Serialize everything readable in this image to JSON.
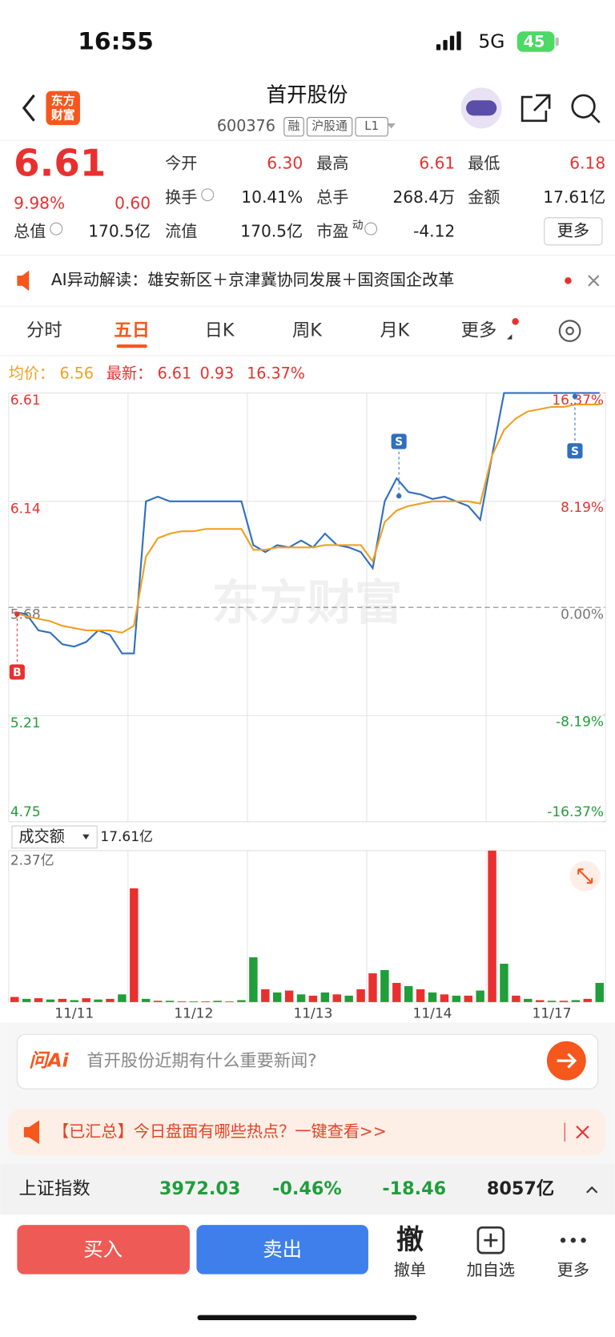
{
  "status_bar": {
    "time": "16:55",
    "network": "5G",
    "battery": "45"
  },
  "header": {
    "logo": [
      "东方",
      "财富"
    ],
    "title": "首开股份",
    "code": "600376",
    "tags": [
      "融",
      "沪股通",
      "L1"
    ]
  },
  "quote": {
    "price": "6.61",
    "change_pct": "9.98%",
    "change": "0.60",
    "color": "#e8312f",
    "more": "更多",
    "fields": [
      {
        "label": "今开",
        "value": "6.30",
        "color": "#e8312f"
      },
      {
        "label": "最高",
        "value": "6.61",
        "color": "#e8312f"
      },
      {
        "label": "最低",
        "value": "6.18",
        "color": "#e8312f"
      },
      {
        "label": "换手",
        "value": "10.41%",
        "color": "#222222",
        "info": true
      },
      {
        "label": "总手",
        "value": "268.4万",
        "color": "#222222"
      },
      {
        "label": "金额",
        "value": "17.61亿",
        "color": "#222222"
      },
      {
        "label": "总值",
        "value": "170.5亿",
        "color": "#222222",
        "info": true
      },
      {
        "label": "流值",
        "value": "170.5亿",
        "color": "#222222"
      },
      {
        "label": "市盈",
        "sup": "动",
        "value": "-4.12",
        "color": "#222222",
        "info": true
      }
    ]
  },
  "ai_banner": {
    "text": "AI异动解读：雄安新区＋京津冀协同发展＋国资国企改革"
  },
  "tabs": [
    "分时",
    "五日",
    "日K",
    "周K",
    "月K",
    "更多"
  ],
  "active_tab": 1,
  "chart_info": {
    "avg_label": "均价：",
    "avg": "6.56",
    "latest_label": "最新：",
    "latest": "6.61",
    "change": "0.93",
    "change_pct": "16.37%"
  },
  "watermark": "东方财富",
  "markers": [
    "B",
    "S",
    "S"
  ],
  "volume_header": {
    "selector": "成交额",
    "value": "17.61亿"
  },
  "chart_data": [
    {
      "type": "line",
      "ylim": [
        4.75,
        6.61
      ],
      "yticks": [
        6.61,
        6.14,
        5.68,
        5.21,
        4.75
      ],
      "y2lim": [
        -16.37,
        16.37
      ],
      "y2ticks": [
        {
          "value": 16.37,
          "label": "16.37%"
        },
        {
          "value": 8.19,
          "label": "8.19%"
        },
        {
          "value": 0,
          "label": "0.00%"
        },
        {
          "value": -8.19,
          "label": "-8.19%"
        },
        {
          "value": -16.37,
          "label": "-16.37%"
        }
      ],
      "grid": true,
      "up_color": "#e8312f",
      "down_color": "#1f9e3a",
      "flat_color": "#777777",
      "series": [
        {
          "color": "#2f6fbf",
          "values": [
            5.66,
            5.65,
            5.58,
            5.57,
            5.52,
            5.51,
            5.53,
            5.58,
            5.56,
            5.48,
            5.48,
            6.14,
            6.16,
            6.14,
            6.14,
            6.14,
            6.14,
            6.14,
            6.14,
            6.14,
            5.95,
            5.92,
            5.95,
            5.94,
            5.97,
            5.94,
            6.0,
            5.95,
            5.94,
            5.92,
            5.85,
            6.14,
            6.24,
            6.18,
            6.17,
            6.15,
            6.16,
            6.14,
            6.12,
            6.06,
            6.34,
            6.61,
            6.61,
            6.61,
            6.61,
            6.61,
            6.61,
            6.61,
            6.61,
            6.61
          ]
        },
        {
          "color": "#f0a020",
          "values": [
            5.66,
            5.64,
            5.63,
            5.62,
            5.6,
            5.59,
            5.58,
            5.58,
            5.58,
            5.57,
            5.6,
            5.9,
            5.98,
            6.0,
            6.01,
            6.01,
            6.02,
            6.02,
            6.02,
            6.02,
            5.93,
            5.93,
            5.94,
            5.94,
            5.94,
            5.94,
            5.95,
            5.95,
            5.95,
            5.95,
            5.88,
            6.05,
            6.1,
            6.12,
            6.13,
            6.14,
            6.14,
            6.14,
            6.14,
            6.13,
            6.34,
            6.45,
            6.5,
            6.53,
            6.54,
            6.55,
            6.55,
            6.56,
            6.56,
            6.56
          ]
        }
      ]
    },
    {
      "type": "bar",
      "ylim": [
        0,
        2.37
      ],
      "yticks": [
        {
          "value": 2.37,
          "label": "2.37亿"
        }
      ],
      "grid": true,
      "x": [
        null,
        null,
        null,
        null,
        null,
        "11/11",
        null,
        null,
        null,
        null,
        null,
        null,
        null,
        null,
        null,
        "11/12",
        null,
        null,
        null,
        null,
        null,
        null,
        null,
        null,
        null,
        "11/13",
        null,
        null,
        null,
        null,
        null,
        null,
        null,
        null,
        null,
        "11/14",
        null,
        null,
        null,
        null,
        null,
        null,
        null,
        null,
        null,
        "11/17",
        null,
        null,
        null,
        null
      ],
      "values": [
        0.08,
        0.05,
        0.06,
        0.04,
        0.05,
        0.03,
        0.06,
        0.04,
        0.05,
        0.12,
        1.78,
        0.05,
        0.02,
        0.02,
        0.01,
        0.01,
        0.01,
        0.02,
        0.01,
        0.03,
        0.7,
        0.2,
        0.15,
        0.18,
        0.12,
        0.1,
        0.15,
        0.12,
        0.1,
        0.2,
        0.45,
        0.5,
        0.3,
        0.25,
        0.2,
        0.15,
        0.12,
        0.1,
        0.1,
        0.18,
        2.37,
        0.6,
        0.1,
        0.05,
        0.03,
        0.02,
        0.02,
        0.03,
        0.05,
        0.3
      ],
      "colors": [
        "#e8312f",
        "#1f9e3a",
        "#e8312f",
        "#1f9e3a",
        "#e8312f",
        "#1f9e3a",
        "#e8312f",
        "#1f9e3a",
        "#e8312f",
        "#1f9e3a",
        "#e8312f",
        "#1f9e3a",
        "#e8312f",
        "#1f9e3a",
        "#e8312f",
        "#1f9e3a",
        "#e8312f",
        "#1f9e3a",
        "#e8312f",
        "#1f9e3a",
        "#1f9e3a",
        "#e8312f",
        "#1f9e3a",
        "#e8312f",
        "#1f9e3a",
        "#e8312f",
        "#1f9e3a",
        "#e8312f",
        "#1f9e3a",
        "#e8312f",
        "#e8312f",
        "#1f9e3a",
        "#e8312f",
        "#1f9e3a",
        "#e8312f",
        "#1f9e3a",
        "#e8312f",
        "#1f9e3a",
        "#e8312f",
        "#1f9e3a",
        "#e8312f",
        "#1f9e3a",
        "#e8312f",
        "#1f9e3a",
        "#e8312f",
        "#1f9e3a",
        "#e8312f",
        "#1f9e3a",
        "#e8312f",
        "#1f9e3a"
      ]
    }
  ],
  "ask_ai": {
    "logo": "问Ai",
    "placeholder": "首开股份近期有什么重要新闻?"
  },
  "hot_banner": {
    "text": "【已汇总】今日盘面有哪些热点？一键查看>>"
  },
  "index_bar": {
    "name": "上证指数",
    "value": "3972.03",
    "change_pct": "-0.46%",
    "change": "-18.46",
    "turnover": "8057亿",
    "color": "#1f9e3a"
  },
  "bottom_bar": {
    "buy": "买入",
    "sell": "卖出",
    "cancel_icon": "撤",
    "cancel": "撤单",
    "watchlist": "加自选",
    "more": "更多"
  }
}
